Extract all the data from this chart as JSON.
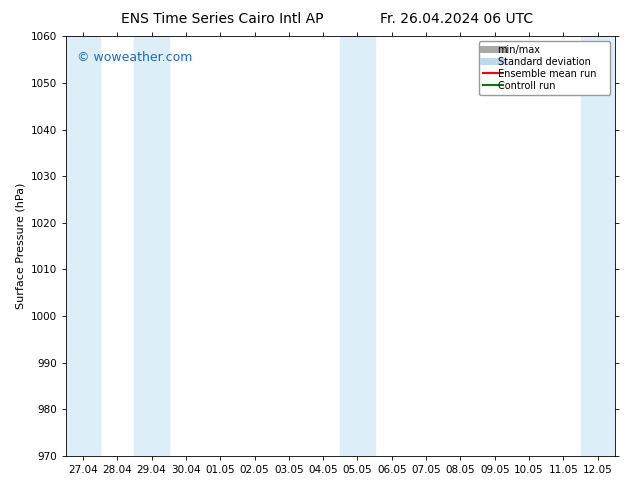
{
  "title_left": "ENS Time Series Cairo Intl AP",
  "title_right": "Fr. 26.04.2024 06 UTC",
  "ylabel": "Surface Pressure (hPa)",
  "ylim": [
    970,
    1060
  ],
  "yticks": [
    970,
    980,
    990,
    1000,
    1010,
    1020,
    1030,
    1040,
    1050,
    1060
  ],
  "xtick_labels": [
    "27.04",
    "28.04",
    "29.04",
    "30.04",
    "01.05",
    "02.05",
    "03.05",
    "04.05",
    "05.05",
    "06.05",
    "07.05",
    "08.05",
    "09.05",
    "10.05",
    "11.05",
    "12.05"
  ],
  "xtick_positions": [
    0,
    1,
    2,
    3,
    4,
    5,
    6,
    7,
    8,
    9,
    10,
    11,
    12,
    13,
    14,
    15
  ],
  "xlim": [
    -0.5,
    15.5
  ],
  "shaded_bands": [
    {
      "x_start": -0.5,
      "x_end": 0.5,
      "color": "#ddeef8"
    },
    {
      "x_start": 1.5,
      "x_end": 2.5,
      "color": "#ddeef8"
    },
    {
      "x_start": 7.5,
      "x_end": 8.5,
      "color": "#ddeef8"
    },
    {
      "x_start": 14.5,
      "x_end": 15.5,
      "color": "#ddeef8"
    }
  ],
  "watermark_text": "© woweather.com",
  "watermark_color": "#1a6bbf",
  "bg_color": "#ffffff",
  "plot_bg": "#ffffff",
  "legend_items": [
    {
      "label": "min/max",
      "color": "#a8a8a8",
      "linewidth": 5
    },
    {
      "label": "Standard deviation",
      "color": "#c0d8ec",
      "linewidth": 5
    },
    {
      "label": "Ensemble mean run",
      "color": "#ff0000",
      "linewidth": 1.5
    },
    {
      "label": "Controll run",
      "color": "#008000",
      "linewidth": 1.5
    }
  ],
  "title_fontsize": 10,
  "axis_fontsize": 8,
  "tick_fontsize": 7.5,
  "watermark_fontsize": 9
}
